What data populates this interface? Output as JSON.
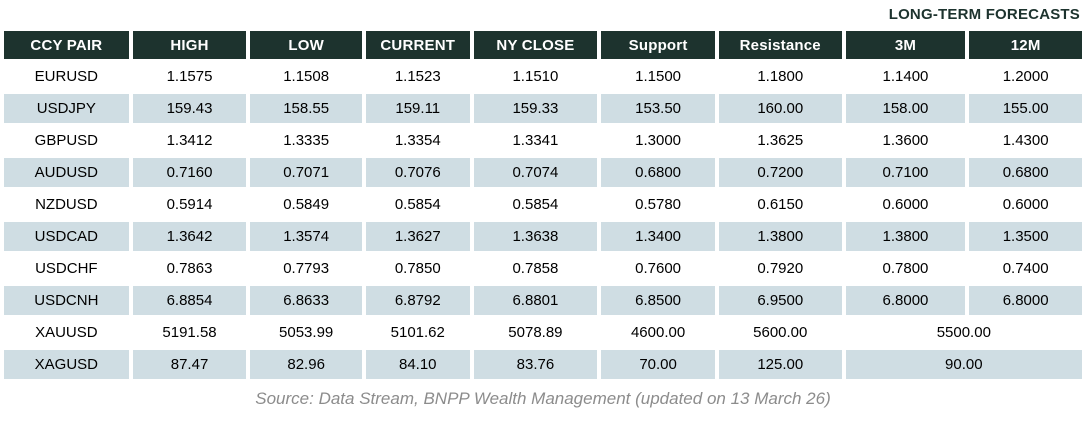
{
  "title": "LONG-TERM FORECASTS",
  "table": {
    "headers": [
      "CCY PAIR",
      "HIGH",
      "LOW",
      "CURRENT",
      "NY CLOSE",
      "Support",
      "Resistance",
      "3M",
      "12M"
    ],
    "rows": [
      {
        "pair": "EURUSD",
        "values": [
          "1.1575",
          "1.1508",
          "1.1523",
          "1.1510",
          "1.1500",
          "1.1800",
          "1.1400",
          "1.2000"
        ]
      },
      {
        "pair": "USDJPY",
        "values": [
          "159.43",
          "158.55",
          "159.11",
          "159.33",
          "153.50",
          "160.00",
          "158.00",
          "155.00"
        ]
      },
      {
        "pair": "GBPUSD",
        "values": [
          "1.3412",
          "1.3335",
          "1.3354",
          "1.3341",
          "1.3000",
          "1.3625",
          "1.3600",
          "1.4300"
        ]
      },
      {
        "pair": "AUDUSD",
        "values": [
          "0.7160",
          "0.7071",
          "0.7076",
          "0.7074",
          "0.6800",
          "0.7200",
          "0.7100",
          "0.6800"
        ]
      },
      {
        "pair": "NZDUSD",
        "values": [
          "0.5914",
          "0.5849",
          "0.5854",
          "0.5854",
          "0.5780",
          "0.6150",
          "0.6000",
          "0.6000"
        ]
      },
      {
        "pair": "USDCAD",
        "values": [
          "1.3642",
          "1.3574",
          "1.3627",
          "1.3638",
          "1.3400",
          "1.3800",
          "1.3800",
          "1.3500"
        ]
      },
      {
        "pair": "USDCHF",
        "values": [
          "0.7863",
          "0.7793",
          "0.7850",
          "0.7858",
          "0.7600",
          "0.7920",
          "0.7800",
          "0.7400"
        ]
      },
      {
        "pair": "USDCNH",
        "values": [
          "6.8854",
          "6.8633",
          "6.8792",
          "6.8801",
          "6.8500",
          "6.9500",
          "6.8000",
          "6.8000"
        ]
      },
      {
        "pair": "XAUUSD",
        "values": [
          "5191.58",
          "5053.99",
          "5101.62",
          "5078.89",
          "4600.00",
          "5600.00"
        ],
        "merged_forecast": "5500.00"
      },
      {
        "pair": "XAGUSD",
        "values": [
          "87.47",
          "82.96",
          "84.10",
          "83.76",
          "70.00",
          "125.00"
        ],
        "merged_forecast": "90.00"
      }
    ]
  },
  "footer": {
    "source_text": "Source: Data Stream, BNPP Wealth Management (updated on 13 March 26)"
  },
  "colors": {
    "header_bg": "#1d332e",
    "header_text": "#ffffff",
    "row_alt_bg": "#cfdde3",
    "footer_text": "#8c8c8c"
  }
}
